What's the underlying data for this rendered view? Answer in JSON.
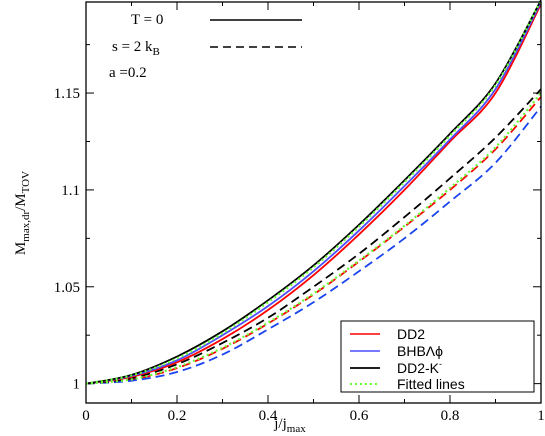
{
  "chart_data": {
    "type": "line",
    "xlabel_main": "j/j",
    "xlabel_sub": "max",
    "ylabel_main": "M",
    "ylabel_sub": "max,dr",
    "ylabel_slash": "/M",
    "ylabel_sub2": "TOV",
    "xlim": [
      0,
      1
    ],
    "ylim": [
      0.99,
      1.197
    ],
    "xticks": [
      0,
      0.2,
      0.4,
      0.6,
      0.8,
      1
    ],
    "xtick_labels": [
      "0",
      "0.2",
      "0.4",
      "0.6",
      "0.8",
      "1"
    ],
    "yticks": [
      1,
      1.05,
      1.1,
      1.15
    ],
    "ytick_labels": [
      "1",
      "1.05",
      "1.1",
      "1.15"
    ],
    "annotations": {
      "t_label": "T = 0",
      "s_label_main": "s = 2 k",
      "s_label_sub": "B",
      "a_label": "a =0.2"
    },
    "legend": {
      "position": "bottom-right",
      "entries": [
        {
          "label": "DD2",
          "color": "#ff0000",
          "style": "solid"
        },
        {
          "label": "BHBΛϕ",
          "color": "#4d4dff",
          "style": "solid"
        },
        {
          "label": "DD2-K",
          "sup": "-",
          "color": "#000000",
          "style": "solid"
        },
        {
          "label": "Fitted lines",
          "color": "#66ff33",
          "style": "dotted"
        }
      ]
    },
    "series": [
      {
        "name": "DD2",
        "condition": "T = 0",
        "color": "#ff0000",
        "style": "solid",
        "x": [
          0,
          0.1,
          0.2,
          0.3,
          0.4,
          0.5,
          0.6,
          0.7,
          0.8,
          0.9,
          1.0
        ],
        "y": [
          1.0,
          1.0035,
          1.011,
          1.023,
          1.038,
          1.056,
          1.077,
          1.1,
          1.125,
          1.15,
          1.196
        ]
      },
      {
        "name": "BHBΛϕ",
        "condition": "T = 0",
        "color": "#4d4dff",
        "style": "solid",
        "x": [
          0,
          0.1,
          0.2,
          0.3,
          0.4,
          0.5,
          0.6,
          0.7,
          0.8,
          0.9,
          1.0
        ],
        "y": [
          1.0,
          1.004,
          1.012,
          1.025,
          1.04,
          1.058,
          1.079,
          1.102,
          1.126,
          1.152,
          1.197
        ]
      },
      {
        "name": "DD2-K",
        "condition": "T = 0",
        "color": "#000000",
        "style": "solid",
        "x": [
          0,
          0.1,
          0.2,
          0.3,
          0.4,
          0.5,
          0.6,
          0.7,
          0.8,
          0.9,
          1.0
        ],
        "y": [
          1.0,
          1.0045,
          1.014,
          1.027,
          1.043,
          1.061,
          1.082,
          1.105,
          1.129,
          1.155,
          1.198
        ]
      },
      {
        "name": "Fitted",
        "condition": "T = 0",
        "color": "#66ff33",
        "style": "dotted",
        "x": [
          0,
          0.1,
          0.2,
          0.3,
          0.4,
          0.5,
          0.6,
          0.7,
          0.8,
          0.9,
          1.0
        ],
        "y": [
          1.0,
          1.0042,
          1.013,
          1.026,
          1.042,
          1.06,
          1.081,
          1.104,
          1.128,
          1.154,
          1.198
        ]
      },
      {
        "name": "DD2",
        "condition": "s = 2 kB",
        "color": "#ff0000",
        "style": "dashed",
        "x": [
          0,
          0.1,
          0.2,
          0.3,
          0.4,
          0.5,
          0.6,
          0.7,
          0.8,
          0.9,
          1.0
        ],
        "y": [
          1.0,
          1.002,
          1.008,
          1.018,
          1.031,
          1.046,
          1.063,
          1.081,
          1.1,
          1.121,
          1.148
        ]
      },
      {
        "name": "BHBΛϕ",
        "condition": "s = 2 kB",
        "color": "#1a44ee",
        "style": "dashed",
        "x": [
          0,
          0.1,
          0.2,
          0.3,
          0.4,
          0.5,
          0.6,
          0.7,
          0.8,
          0.9,
          1.0
        ],
        "y": [
          1.0,
          1.0015,
          1.006,
          1.015,
          1.028,
          1.042,
          1.058,
          1.075,
          1.094,
          1.114,
          1.143
        ]
      },
      {
        "name": "DD2-K",
        "condition": "s = 2 kB",
        "color": "#000000",
        "style": "dashed",
        "x": [
          0,
          0.1,
          0.2,
          0.3,
          0.4,
          0.5,
          0.6,
          0.7,
          0.8,
          0.9,
          1.0
        ],
        "y": [
          1.0,
          1.0028,
          1.01,
          1.021,
          1.034,
          1.05,
          1.067,
          1.086,
          1.106,
          1.127,
          1.152
        ]
      },
      {
        "name": "Fitted",
        "condition": "s = 2 kB",
        "color": "#66ff33",
        "style": "dotted",
        "x": [
          0,
          0.1,
          0.2,
          0.3,
          0.4,
          0.5,
          0.6,
          0.7,
          0.8,
          0.9,
          1.0
        ],
        "y": [
          1.0,
          1.0022,
          1.0085,
          1.0185,
          1.0315,
          1.0465,
          1.0635,
          1.0815,
          1.101,
          1.122,
          1.15
        ]
      }
    ]
  }
}
